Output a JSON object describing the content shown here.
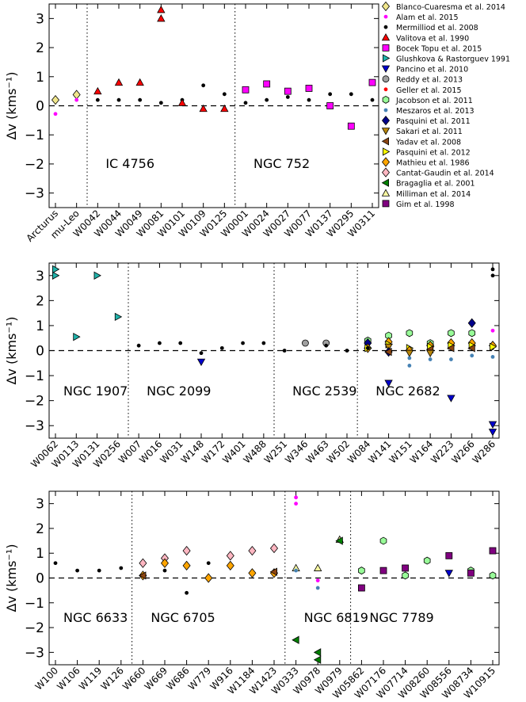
{
  "legend": [
    {
      "name": "Blanco-Cuaresma et al. 2014",
      "marker": "diamond",
      "color": "#f0e68c"
    },
    {
      "name": "Alam et al. 2015",
      "marker": "dot",
      "color": "#ff00ff"
    },
    {
      "name": "Mermilliod et al. 2008",
      "marker": "dot",
      "color": "#000000"
    },
    {
      "name": "Valitova et al. 1990",
      "marker": "triangle-up",
      "color": "#ff0000"
    },
    {
      "name": "Bocek Topu et al. 2015",
      "marker": "square",
      "color": "#ff00ff"
    },
    {
      "name": "Glushkova & Rastorguev 1991",
      "marker": "triangle-right",
      "color": "#20b2aa"
    },
    {
      "name": "Pancino et al. 2010",
      "marker": "triangle-down",
      "color": "#0000cd"
    },
    {
      "name": "Reddy et al. 2013",
      "marker": "circle",
      "color": "#a0a0a0"
    },
    {
      "name": "Geller et al. 2015",
      "marker": "dot",
      "color": "#ff0000"
    },
    {
      "name": "Jacobson et al. 2011",
      "marker": "hexagon",
      "color": "#98fb98"
    },
    {
      "name": "Meszaros et al. 2013",
      "marker": "dot",
      "color": "#4682b4"
    },
    {
      "name": "Pasquini et al. 2011",
      "marker": "diamond",
      "color": "#00008b"
    },
    {
      "name": "Sakari et al. 2011",
      "marker": "triangle-down",
      "color": "#b8860b"
    },
    {
      "name": "Yadav et al. 2008",
      "marker": "triangle-left",
      "color": "#8b4513"
    },
    {
      "name": "Pasquini et al. 2012",
      "marker": "triangle-right",
      "color": "#ffff00"
    },
    {
      "name": "Mathieu et al. 1986",
      "marker": "diamond",
      "color": "#ffa500"
    },
    {
      "name": "Cantat-Gaudin et al. 2014",
      "marker": "diamond",
      "color": "#ffb6c1"
    },
    {
      "name": "Bragaglia et al. 2001",
      "marker": "triangle-left",
      "color": "#008000"
    },
    {
      "name": "Milliman et al. 2014",
      "marker": "triangle-up",
      "color": "#f5f5a0"
    },
    {
      "name": "Gim et al. 1998",
      "marker": "square",
      "color": "#800080"
    }
  ],
  "chart_data": [
    {
      "type": "scatter",
      "ylabel": "Δv (kms⁻¹)",
      "ylim": [
        -3.5,
        3.5
      ],
      "yticks": [
        -3,
        -2,
        -1,
        0,
        1,
        2,
        3
      ],
      "categories": [
        "Arcturus",
        "mu-Leo",
        "W0042",
        "W0044",
        "W0049",
        "W0081",
        "W0101",
        "W0109",
        "W0125",
        "W0001",
        "W0024",
        "W0027",
        "W0077",
        "W0137",
        "W0295",
        "W0311"
      ],
      "groups": [
        {
          "name": "IC 4756",
          "start": 2,
          "end": 8
        },
        {
          "name": "NGC 752",
          "start": 9,
          "end": 15
        }
      ],
      "dividers": [
        1.5,
        8.5
      ],
      "points": [
        {
          "x": 0,
          "y": 0.2,
          "series": "Blanco-Cuaresma et al. 2014"
        },
        {
          "x": 0,
          "y": -0.28,
          "series": "Alam et al. 2015"
        },
        {
          "x": 1,
          "y": 0.38,
          "series": "Blanco-Cuaresma et al. 2014"
        },
        {
          "x": 1,
          "y": 0.2,
          "series": "Alam et al. 2015"
        },
        {
          "x": 2,
          "y": 0.2,
          "series": "Mermilliod et al. 2008"
        },
        {
          "x": 2,
          "y": 0.5,
          "series": "Valitova et al. 1990"
        },
        {
          "x": 3,
          "y": 0.2,
          "series": "Mermilliod et al. 2008"
        },
        {
          "x": 3,
          "y": 0.8,
          "series": "Valitova et al. 1990"
        },
        {
          "x": 4,
          "y": 0.2,
          "series": "Mermilliod et al. 2008"
        },
        {
          "x": 4,
          "y": 0.8,
          "series": "Valitova et al. 1990"
        },
        {
          "x": 5,
          "y": 0.1,
          "series": "Mermilliod et al. 2008"
        },
        {
          "x": 5,
          "y": 3.0,
          "series": "Valitova et al. 1990"
        },
        {
          "x": 5,
          "y": 3.3,
          "series": "Valitova et al. 1990"
        },
        {
          "x": 6,
          "y": 0.2,
          "series": "Mermilliod et al. 2008"
        },
        {
          "x": 6,
          "y": 0.1,
          "series": "Valitova et al. 1990"
        },
        {
          "x": 7,
          "y": 0.7,
          "series": "Mermilliod et al. 2008"
        },
        {
          "x": 7,
          "y": -0.1,
          "series": "Valitova et al. 1990"
        },
        {
          "x": 8,
          "y": 0.4,
          "series": "Mermilliod et al. 2008"
        },
        {
          "x": 8,
          "y": -0.1,
          "series": "Valitova et al. 1990"
        },
        {
          "x": 9,
          "y": 0.1,
          "series": "Mermilliod et al. 2008"
        },
        {
          "x": 9,
          "y": 0.55,
          "series": "Bocek Topu et al. 2015"
        },
        {
          "x": 10,
          "y": 0.2,
          "series": "Mermilliod et al. 2008"
        },
        {
          "x": 10,
          "y": 0.75,
          "series": "Bocek Topu et al. 2015"
        },
        {
          "x": 11,
          "y": 0.3,
          "series": "Mermilliod et al. 2008"
        },
        {
          "x": 11,
          "y": 0.5,
          "series": "Bocek Topu et al. 2015"
        },
        {
          "x": 12,
          "y": 0.2,
          "series": "Mermilliod et al. 2008"
        },
        {
          "x": 12,
          "y": 0.6,
          "series": "Bocek Topu et al. 2015"
        },
        {
          "x": 13,
          "y": 0.4,
          "series": "Mermilliod et al. 2008"
        },
        {
          "x": 13,
          "y": 0.0,
          "series": "Bocek Topu et al. 2015"
        },
        {
          "x": 14,
          "y": 0.4,
          "series": "Mermilliod et al. 2008"
        },
        {
          "x": 14,
          "y": -0.7,
          "series": "Bocek Topu et al. 2015"
        },
        {
          "x": 15,
          "y": 0.2,
          "series": "Mermilliod et al. 2008"
        },
        {
          "x": 15,
          "y": 0.8,
          "series": "Bocek Topu et al. 2015"
        }
      ]
    },
    {
      "type": "scatter",
      "ylabel": "Δv (kms⁻¹)",
      "ylim": [
        -3.5,
        3.5
      ],
      "yticks": [
        -3,
        -2,
        -1,
        0,
        1,
        2,
        3
      ],
      "categories": [
        "W0062",
        "W0113",
        "W0131",
        "W0256",
        "W007",
        "W016",
        "W031",
        "W148",
        "W172",
        "W401",
        "W488",
        "W251",
        "W346",
        "W463",
        "W502",
        "W084",
        "W141",
        "W151",
        "W164",
        "W223",
        "W266",
        "W286"
      ],
      "groups": [
        {
          "name": "NGC 1907",
          "start": 0,
          "end": 3
        },
        {
          "name": "NGC 2099",
          "start": 4,
          "end": 10
        },
        {
          "name": "NGC 2539",
          "start": 11,
          "end": 14
        },
        {
          "name": "NGC 2682",
          "start": 15,
          "end": 21
        }
      ],
      "dividers": [
        3.5,
        10.5,
        14.5
      ],
      "points": [
        {
          "x": 0,
          "y": 3.0,
          "series": "Glushkova & Rastorguev 1991"
        },
        {
          "x": 0,
          "y": 3.25,
          "series": "Glushkova & Rastorguev 1991"
        },
        {
          "x": 1,
          "y": 0.55,
          "series": "Glushkova & Rastorguev 1991"
        },
        {
          "x": 2,
          "y": 3.0,
          "series": "Glushkova & Rastorguev 1991"
        },
        {
          "x": 3,
          "y": 1.35,
          "series": "Glushkova & Rastorguev 1991"
        },
        {
          "x": 4,
          "y": 0.2,
          "series": "Mermilliod et al. 2008"
        },
        {
          "x": 5,
          "y": 0.3,
          "series": "Mermilliod et al. 2008"
        },
        {
          "x": 6,
          "y": 0.3,
          "series": "Mermilliod et al. 2008"
        },
        {
          "x": 7,
          "y": -0.1,
          "series": "Mermilliod et al. 2008"
        },
        {
          "x": 7,
          "y": -0.45,
          "series": "Pancino et al. 2010"
        },
        {
          "x": 8,
          "y": 0.1,
          "series": "Mermilliod et al. 2008"
        },
        {
          "x": 9,
          "y": 0.3,
          "series": "Mermilliod et al. 2008"
        },
        {
          "x": 10,
          "y": 0.3,
          "series": "Mermilliod et al. 2008"
        },
        {
          "x": 11,
          "y": 0.0,
          "series": "Mermilliod et al. 2008"
        },
        {
          "x": 12,
          "y": 0.3,
          "series": "Reddy et al. 2013"
        },
        {
          "x": 13,
          "y": 0.3,
          "series": "Reddy et al. 2013"
        },
        {
          "x": 13,
          "y": 0.2,
          "series": "Mermilliod et al. 2008"
        },
        {
          "x": 14,
          "y": 0.0,
          "series": "Mermilliod et al. 2008"
        },
        {
          "x": 15,
          "y": 0.4,
          "series": "Jacobson et al. 2011"
        },
        {
          "x": 15,
          "y": 0.3,
          "series": "Pasquini et al. 2011"
        },
        {
          "x": 15,
          "y": 0.1,
          "series": "Mathieu et al. 1986"
        },
        {
          "x": 15,
          "y": 0.1,
          "series": "Pasquini et al. 2012"
        },
        {
          "x": 15,
          "y": 0.1,
          "series": "Mermilliod et al. 2008"
        },
        {
          "x": 16,
          "y": 0.6,
          "series": "Jacobson et al. 2011"
        },
        {
          "x": 16,
          "y": 0.35,
          "series": "Mathieu et al. 1986"
        },
        {
          "x": 16,
          "y": 0.25,
          "series": "Pasquini et al. 2012"
        },
        {
          "x": 16,
          "y": 0.15,
          "series": "Sakari et al. 2011"
        },
        {
          "x": 16,
          "y": -0.05,
          "series": "Pasquini et al. 2011"
        },
        {
          "x": 16,
          "y": -0.05,
          "series": "Yadav et al. 2008"
        },
        {
          "x": 16,
          "y": -1.3,
          "series": "Pancino et al. 2010"
        },
        {
          "x": 17,
          "y": 0.7,
          "series": "Jacobson et al. 2011"
        },
        {
          "x": 17,
          "y": 0.1,
          "series": "Pasquini et al. 2012"
        },
        {
          "x": 17,
          "y": 0.0,
          "series": "Mathieu et al. 1986"
        },
        {
          "x": 17,
          "y": -0.1,
          "series": "Sakari et al. 2011"
        },
        {
          "x": 17,
          "y": -0.3,
          "series": "Meszaros et al. 2013"
        },
        {
          "x": 17,
          "y": -0.6,
          "series": "Meszaros et al. 2013"
        },
        {
          "x": 18,
          "y": 0.3,
          "series": "Jacobson et al. 2011"
        },
        {
          "x": 18,
          "y": 0.2,
          "series": "Mathieu et al. 1986"
        },
        {
          "x": 18,
          "y": 0.15,
          "series": "Pasquini et al. 2012"
        },
        {
          "x": 18,
          "y": 0.05,
          "series": "Yadav et al. 2008"
        },
        {
          "x": 18,
          "y": -0.1,
          "series": "Sakari et al. 2011"
        },
        {
          "x": 18,
          "y": -0.35,
          "series": "Meszaros et al. 2013"
        },
        {
          "x": 19,
          "y": 0.7,
          "series": "Jacobson et al. 2011"
        },
        {
          "x": 19,
          "y": 0.3,
          "series": "Mathieu et al. 1986"
        },
        {
          "x": 19,
          "y": 0.2,
          "series": "Pasquini et al. 2012"
        },
        {
          "x": 19,
          "y": 0.1,
          "series": "Yadav et al. 2008"
        },
        {
          "x": 19,
          "y": -0.35,
          "series": "Meszaros et al. 2013"
        },
        {
          "x": 19,
          "y": -1.9,
          "series": "Pancino et al. 2010"
        },
        {
          "x": 20,
          "y": 1.1,
          "series": "Pasquini et al. 2011"
        },
        {
          "x": 20,
          "y": 0.7,
          "series": "Jacobson et al. 2011"
        },
        {
          "x": 20,
          "y": 0.3,
          "series": "Mathieu et al. 1986"
        },
        {
          "x": 20,
          "y": 0.2,
          "series": "Pasquini et al. 2012"
        },
        {
          "x": 20,
          "y": 0.1,
          "series": "Yadav et al. 2008"
        },
        {
          "x": 20,
          "y": -0.2,
          "series": "Meszaros et al. 2013"
        },
        {
          "x": 21,
          "y": 3.25,
          "series": "Mermilliod et al. 2008"
        },
        {
          "x": 21,
          "y": 3.0,
          "series": "Mermilliod et al. 2008"
        },
        {
          "x": 21,
          "y": 0.8,
          "series": "Alam et al. 2015"
        },
        {
          "x": 21,
          "y": 0.2,
          "series": "Mathieu et al. 1986"
        },
        {
          "x": 21,
          "y": 0.15,
          "series": "Pasquini et al. 2012"
        },
        {
          "x": 21,
          "y": -0.25,
          "series": "Meszaros et al. 2013"
        },
        {
          "x": 21,
          "y": -2.95,
          "series": "Pancino et al. 2010"
        },
        {
          "x": 21,
          "y": -3.25,
          "series": "Pancino et al. 2010"
        }
      ]
    },
    {
      "type": "scatter",
      "ylabel": "Δv (kms⁻¹)",
      "ylim": [
        -3.5,
        3.5
      ],
      "yticks": [
        -3,
        -2,
        -1,
        0,
        1,
        2,
        3
      ],
      "categories": [
        "W100",
        "W106",
        "W119",
        "W126",
        "W660",
        "W669",
        "W686",
        "W779",
        "W916",
        "W1184",
        "W1423",
        "W0333",
        "W0978",
        "W0979",
        "W05862",
        "W07176",
        "W07714",
        "W08260",
        "W08556",
        "W08734",
        "W10915"
      ],
      "groups": [
        {
          "name": "NGC 6633",
          "start": 0,
          "end": 3
        },
        {
          "name": "NGC 6705",
          "start": 4,
          "end": 10
        },
        {
          "name": "NGC 6819",
          "start": 11,
          "end": 13
        },
        {
          "name": "NGC 7789",
          "start": 14,
          "end": 20
        }
      ],
      "dividers": [
        3.5,
        10.5,
        13.5
      ],
      "points": [
        {
          "x": 0,
          "y": 0.6,
          "series": "Mermilliod et al. 2008"
        },
        {
          "x": 1,
          "y": 0.3,
          "series": "Mermilliod et al. 2008"
        },
        {
          "x": 2,
          "y": 0.3,
          "series": "Mermilliod et al. 2008"
        },
        {
          "x": 3,
          "y": 0.4,
          "series": "Mermilliod et al. 2008"
        },
        {
          "x": 4,
          "y": 0.6,
          "series": "Cantat-Gaudin et al. 2014"
        },
        {
          "x": 4,
          "y": 0.1,
          "series": "Mathieu et al. 1986"
        },
        {
          "x": 4,
          "y": 0.1,
          "series": "Yadav et al. 2008"
        },
        {
          "x": 5,
          "y": 0.8,
          "series": "Cantat-Gaudin et al. 2014"
        },
        {
          "x": 5,
          "y": 0.6,
          "series": "Mathieu et al. 1986"
        },
        {
          "x": 5,
          "y": 0.3,
          "series": "Mermilliod et al. 2008"
        },
        {
          "x": 6,
          "y": 1.1,
          "series": "Cantat-Gaudin et al. 2014"
        },
        {
          "x": 6,
          "y": 0.5,
          "series": "Mathieu et al. 1986"
        },
        {
          "x": 6,
          "y": -0.6,
          "series": "Mermilliod et al. 2008"
        },
        {
          "x": 7,
          "y": 0.6,
          "series": "Mermilliod et al. 2008"
        },
        {
          "x": 7,
          "y": 0.0,
          "series": "Mathieu et al. 1986"
        },
        {
          "x": 8,
          "y": 0.9,
          "series": "Cantat-Gaudin et al. 2014"
        },
        {
          "x": 8,
          "y": 0.5,
          "series": "Mathieu et al. 1986"
        },
        {
          "x": 9,
          "y": 1.1,
          "series": "Cantat-Gaudin et al. 2014"
        },
        {
          "x": 9,
          "y": 0.2,
          "series": "Mathieu et al. 1986"
        },
        {
          "x": 10,
          "y": 1.2,
          "series": "Cantat-Gaudin et al. 2014"
        },
        {
          "x": 10,
          "y": 0.2,
          "series": "Mathieu et al. 1986"
        },
        {
          "x": 10,
          "y": 0.25,
          "series": "Yadav et al. 2008"
        },
        {
          "x": 11,
          "y": 3.25,
          "series": "Alam et al. 2015"
        },
        {
          "x": 11,
          "y": 3.0,
          "series": "Alam et al. 2015"
        },
        {
          "x": 11,
          "y": 0.4,
          "series": "Milliman et al. 2014"
        },
        {
          "x": 11,
          "y": 0.3,
          "series": "Meszaros et al. 2013"
        },
        {
          "x": 11,
          "y": -2.5,
          "series": "Bragaglia et al. 2001"
        },
        {
          "x": 12,
          "y": 0.4,
          "series": "Milliman et al. 2014"
        },
        {
          "x": 12,
          "y": -0.1,
          "series": "Alam et al. 2015"
        },
        {
          "x": 12,
          "y": -0.4,
          "series": "Meszaros et al. 2013"
        },
        {
          "x": 12,
          "y": -3.0,
          "series": "Bragaglia et al. 2001"
        },
        {
          "x": 12,
          "y": -3.3,
          "series": "Bragaglia et al. 2001"
        },
        {
          "x": 13,
          "y": 1.55,
          "series": "Milliman et al. 2014"
        },
        {
          "x": 13,
          "y": 1.5,
          "series": "Bragaglia et al. 2001"
        },
        {
          "x": 14,
          "y": 0.3,
          "series": "Jacobson et al. 2011"
        },
        {
          "x": 14,
          "y": -0.4,
          "series": "Gim et al. 1998"
        },
        {
          "x": 15,
          "y": 1.5,
          "series": "Jacobson et al. 2011"
        },
        {
          "x": 15,
          "y": 0.3,
          "series": "Gim et al. 1998"
        },
        {
          "x": 16,
          "y": 0.4,
          "series": "Gim et al. 1998"
        },
        {
          "x": 16,
          "y": 0.1,
          "series": "Jacobson et al. 2011"
        },
        {
          "x": 17,
          "y": 0.7,
          "series": "Jacobson et al. 2011"
        },
        {
          "x": 18,
          "y": 0.9,
          "series": "Gim et al. 1998"
        },
        {
          "x": 18,
          "y": 0.2,
          "series": "Pancino et al. 2010"
        },
        {
          "x": 19,
          "y": 0.3,
          "series": "Jacobson et al. 2011"
        },
        {
          "x": 19,
          "y": 0.2,
          "series": "Gim et al. 1998"
        },
        {
          "x": 20,
          "y": 1.1,
          "series": "Gim et al. 1998"
        },
        {
          "x": 20,
          "y": 0.1,
          "series": "Jacobson et al. 2011"
        }
      ]
    }
  ]
}
